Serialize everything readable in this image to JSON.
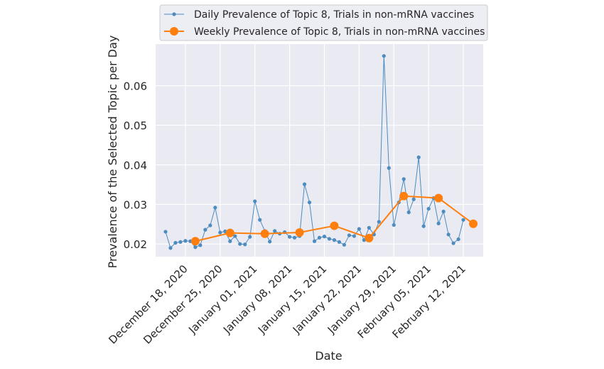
{
  "chart_data": {
    "type": "line",
    "title": "",
    "xlabel": "Date",
    "ylabel": "Prevalence of the Selected Topic per Day",
    "x_tick_labels": [
      "December 18, 2020",
      "December 25, 2020",
      "January 01, 2021",
      "January 08, 2021",
      "January 15, 2021",
      "January 22, 2021",
      "January 29, 2021",
      "February 05, 2021",
      "February 12, 2021"
    ],
    "y_tick_labels": [
      "0.02",
      "0.03",
      "0.04",
      "0.05",
      "0.06"
    ],
    "ylim": [
      0.0168,
      0.0705
    ],
    "xlim": [
      "2020-12-12",
      "2021-02-16"
    ],
    "grid": true,
    "legend_position": "top-center",
    "colors": {
      "daily": "#4c8cbf",
      "weekly": "#ff7f0e",
      "plot_background": "#eaeaf2",
      "grid": "#ffffff"
    },
    "series": [
      {
        "name": "Daily Prevalence of Topic 8, Trials in non-mRNA vaccines",
        "marker": "small-dot",
        "points": [
          [
            "2020-12-14",
            0.0231
          ],
          [
            "2020-12-15",
            0.019
          ],
          [
            "2020-12-16",
            0.0203
          ],
          [
            "2020-12-17",
            0.0205
          ],
          [
            "2020-12-18",
            0.0208
          ],
          [
            "2020-12-19",
            0.0207
          ],
          [
            "2020-12-20",
            0.0192
          ],
          [
            "2020-12-21",
            0.0197
          ],
          [
            "2020-12-22",
            0.0236
          ],
          [
            "2020-12-23",
            0.0247
          ],
          [
            "2020-12-24",
            0.0292
          ],
          [
            "2020-12-25",
            0.0229
          ],
          [
            "2020-12-26",
            0.0232
          ],
          [
            "2020-12-27",
            0.0207
          ],
          [
            "2020-12-28",
            0.022
          ],
          [
            "2020-12-29",
            0.02
          ],
          [
            "2020-12-30",
            0.0199
          ],
          [
            "2020-12-31",
            0.0218
          ],
          [
            "2021-01-01",
            0.0308
          ],
          [
            "2021-01-02",
            0.0261
          ],
          [
            "2021-01-03",
            0.0233
          ],
          [
            "2021-01-04",
            0.0206
          ],
          [
            "2021-01-05",
            0.0233
          ],
          [
            "2021-01-06",
            0.0226
          ],
          [
            "2021-01-07",
            0.023
          ],
          [
            "2021-01-08",
            0.0218
          ],
          [
            "2021-01-09",
            0.0216
          ],
          [
            "2021-01-10",
            0.022
          ],
          [
            "2021-01-11",
            0.0351
          ],
          [
            "2021-01-12",
            0.0305
          ],
          [
            "2021-01-13",
            0.0207
          ],
          [
            "2021-01-14",
            0.0216
          ],
          [
            "2021-01-15",
            0.0219
          ],
          [
            "2021-01-16",
            0.0213
          ],
          [
            "2021-01-17",
            0.021
          ],
          [
            "2021-01-18",
            0.0205
          ],
          [
            "2021-01-19",
            0.0198
          ],
          [
            "2021-01-20",
            0.0222
          ],
          [
            "2021-01-21",
            0.022
          ],
          [
            "2021-01-22",
            0.0238
          ],
          [
            "2021-01-23",
            0.021
          ],
          [
            "2021-01-24",
            0.0241
          ],
          [
            "2021-01-25",
            0.0224
          ],
          [
            "2021-01-26",
            0.0256
          ],
          [
            "2021-01-27",
            0.0675
          ],
          [
            "2021-01-28",
            0.0392
          ],
          [
            "2021-01-29",
            0.0248
          ],
          [
            "2021-01-30",
            0.0305
          ],
          [
            "2021-01-31",
            0.0364
          ],
          [
            "2021-02-01",
            0.028
          ],
          [
            "2021-02-02",
            0.0313
          ],
          [
            "2021-02-03",
            0.0419
          ],
          [
            "2021-02-04",
            0.0245
          ],
          [
            "2021-02-05",
            0.0289
          ],
          [
            "2021-02-06",
            0.0316
          ],
          [
            "2021-02-07",
            0.0252
          ],
          [
            "2021-02-08",
            0.0282
          ],
          [
            "2021-02-09",
            0.0224
          ],
          [
            "2021-02-10",
            0.0202
          ],
          [
            "2021-02-11",
            0.0212
          ],
          [
            "2021-02-12",
            0.0261
          ]
        ]
      },
      {
        "name": "Weekly Prevalence of Topic 8, Trials in non-mRNA vaccines",
        "marker": "large-dot",
        "points": [
          [
            "2020-12-20",
            0.0207
          ],
          [
            "2020-12-27",
            0.0228
          ],
          [
            "2021-01-03",
            0.0226
          ],
          [
            "2021-01-10",
            0.0229
          ],
          [
            "2021-01-17",
            0.0246
          ],
          [
            "2021-01-24",
            0.0215
          ],
          [
            "2021-01-31",
            0.0321
          ],
          [
            "2021-02-07",
            0.0316
          ],
          [
            "2021-02-14",
            0.0251
          ]
        ]
      }
    ]
  }
}
